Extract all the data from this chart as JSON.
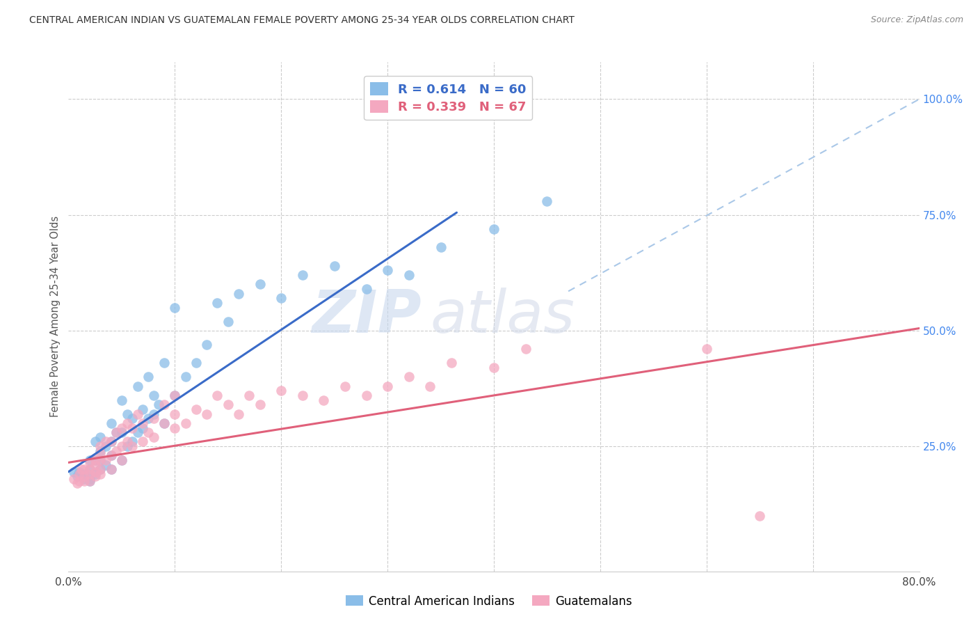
{
  "title": "CENTRAL AMERICAN INDIAN VS GUATEMALAN FEMALE POVERTY AMONG 25-34 YEAR OLDS CORRELATION CHART",
  "source": "Source: ZipAtlas.com",
  "ylabel": "Female Poverty Among 25-34 Year Olds",
  "xlim": [
    0.0,
    0.8
  ],
  "ylim": [
    -0.02,
    1.08
  ],
  "R_blue": 0.614,
  "N_blue": 60,
  "R_pink": 0.339,
  "N_pink": 67,
  "blue_color": "#8abde8",
  "pink_color": "#f4a8c0",
  "line_blue": "#3a6bc8",
  "line_pink": "#e0607a",
  "line_dash_color": "#aac8e8",
  "legend_label_blue": "Central American Indians",
  "legend_label_pink": "Guatemalans",
  "watermark_zip": "ZIP",
  "watermark_atlas": "atlas",
  "blue_line_x0": 0.0,
  "blue_line_y0": 0.195,
  "blue_line_x1": 0.365,
  "blue_line_y1": 0.755,
  "pink_line_x0": 0.0,
  "pink_line_y0": 0.215,
  "pink_line_x1": 0.8,
  "pink_line_y1": 0.505,
  "dash_line_x0": 0.47,
  "dash_line_y0": 0.585,
  "dash_line_x1": 0.8,
  "dash_line_y1": 1.0,
  "blue_x": [
    0.005,
    0.008,
    0.01,
    0.01,
    0.015,
    0.015,
    0.02,
    0.02,
    0.02,
    0.02,
    0.025,
    0.025,
    0.025,
    0.03,
    0.03,
    0.03,
    0.03,
    0.035,
    0.035,
    0.04,
    0.04,
    0.04,
    0.04,
    0.045,
    0.05,
    0.05,
    0.05,
    0.055,
    0.055,
    0.06,
    0.06,
    0.065,
    0.065,
    0.07,
    0.07,
    0.075,
    0.075,
    0.08,
    0.08,
    0.085,
    0.09,
    0.09,
    0.1,
    0.1,
    0.11,
    0.12,
    0.13,
    0.14,
    0.15,
    0.16,
    0.18,
    0.2,
    0.22,
    0.25,
    0.28,
    0.3,
    0.32,
    0.35,
    0.4,
    0.45
  ],
  "blue_y": [
    0.195,
    0.185,
    0.19,
    0.195,
    0.18,
    0.19,
    0.175,
    0.18,
    0.2,
    0.22,
    0.19,
    0.22,
    0.26,
    0.2,
    0.22,
    0.24,
    0.27,
    0.21,
    0.25,
    0.2,
    0.23,
    0.26,
    0.3,
    0.28,
    0.22,
    0.28,
    0.35,
    0.25,
    0.32,
    0.26,
    0.31,
    0.28,
    0.38,
    0.29,
    0.33,
    0.31,
    0.4,
    0.32,
    0.36,
    0.34,
    0.3,
    0.43,
    0.36,
    0.55,
    0.4,
    0.43,
    0.47,
    0.56,
    0.52,
    0.58,
    0.6,
    0.57,
    0.62,
    0.64,
    0.59,
    0.63,
    0.62,
    0.68,
    0.72,
    0.78
  ],
  "pink_x": [
    0.005,
    0.008,
    0.01,
    0.01,
    0.012,
    0.015,
    0.015,
    0.015,
    0.02,
    0.02,
    0.02,
    0.02,
    0.025,
    0.025,
    0.025,
    0.025,
    0.03,
    0.03,
    0.03,
    0.03,
    0.03,
    0.035,
    0.035,
    0.04,
    0.04,
    0.04,
    0.045,
    0.045,
    0.05,
    0.05,
    0.05,
    0.055,
    0.055,
    0.06,
    0.06,
    0.065,
    0.07,
    0.07,
    0.075,
    0.08,
    0.08,
    0.09,
    0.09,
    0.1,
    0.1,
    0.1,
    0.11,
    0.12,
    0.13,
    0.14,
    0.15,
    0.16,
    0.17,
    0.18,
    0.2,
    0.22,
    0.24,
    0.26,
    0.28,
    0.3,
    0.32,
    0.34,
    0.36,
    0.4,
    0.43,
    0.6,
    0.65
  ],
  "pink_y": [
    0.18,
    0.17,
    0.175,
    0.19,
    0.2,
    0.175,
    0.185,
    0.2,
    0.175,
    0.19,
    0.2,
    0.215,
    0.185,
    0.195,
    0.21,
    0.22,
    0.19,
    0.2,
    0.22,
    0.235,
    0.25,
    0.22,
    0.26,
    0.2,
    0.23,
    0.26,
    0.24,
    0.28,
    0.22,
    0.25,
    0.29,
    0.26,
    0.3,
    0.25,
    0.29,
    0.32,
    0.26,
    0.3,
    0.28,
    0.27,
    0.31,
    0.3,
    0.34,
    0.29,
    0.32,
    0.36,
    0.3,
    0.33,
    0.32,
    0.36,
    0.34,
    0.32,
    0.36,
    0.34,
    0.37,
    0.36,
    0.35,
    0.38,
    0.36,
    0.38,
    0.4,
    0.38,
    0.43,
    0.42,
    0.46,
    0.46,
    0.1
  ]
}
